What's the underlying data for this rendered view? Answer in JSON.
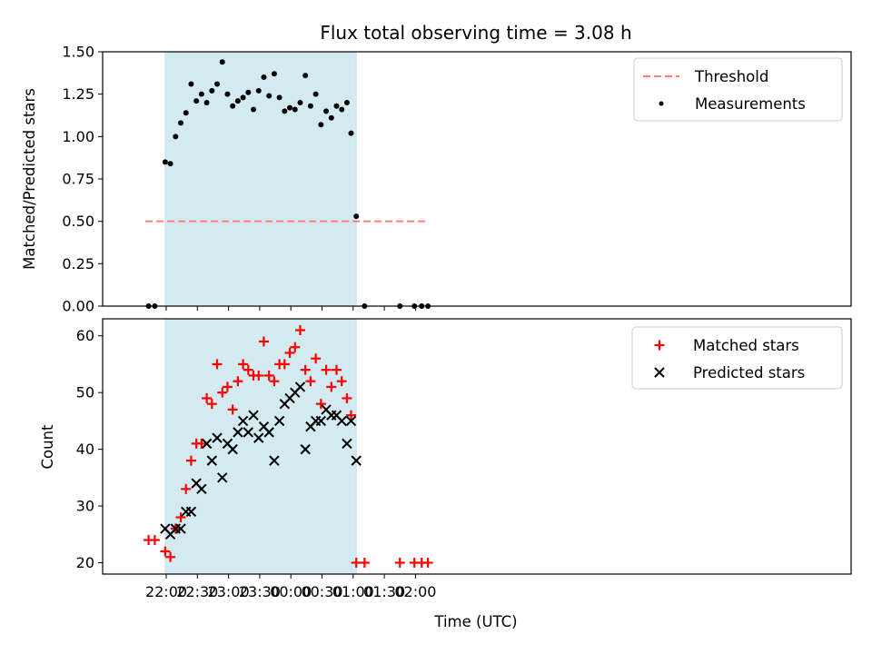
{
  "chart_data": [
    {
      "type": "scatter",
      "title": "Flux total observing time = 3.08 h",
      "xlabel": "",
      "ylabel": "Matched/Predicted stars",
      "ylim": [
        0,
        1.5
      ],
      "yticks": [
        "0.00",
        "0.25",
        "0.50",
        "0.75",
        "1.00",
        "1.25",
        "1.50"
      ],
      "shaded_interval": [
        "21:59",
        "01:03"
      ],
      "series": [
        {
          "name": "Threshold",
          "kind": "dashed-line",
          "color": "#ff7f7f",
          "x": [
            "21:40",
            "02:12"
          ],
          "values": [
            0.5,
            0.5
          ]
        },
        {
          "name": "Measurements",
          "kind": "dots",
          "color": "#000000",
          "x": [
            "21:43",
            "21:49",
            "21:59",
            "22:04",
            "22:09",
            "22:14",
            "22:19",
            "22:24",
            "22:29",
            "22:34",
            "22:39",
            "22:44",
            "22:49",
            "22:54",
            "22:59",
            "23:04",
            "23:09",
            "23:14",
            "23:19",
            "23:24",
            "23:29",
            "23:34",
            "23:39",
            "23:44",
            "23:49",
            "23:54",
            "23:59",
            "00:04",
            "00:09",
            "00:14",
            "00:19",
            "00:24",
            "00:29",
            "00:34",
            "00:39",
            "00:44",
            "00:49",
            "00:54",
            "00:58",
            "01:03",
            "01:11",
            "01:45",
            "01:59",
            "02:06",
            "02:12"
          ],
          "values": [
            0,
            0,
            0.85,
            0.84,
            1.0,
            1.08,
            1.14,
            1.31,
            1.21,
            1.25,
            1.2,
            1.27,
            1.31,
            1.44,
            1.25,
            1.18,
            1.21,
            1.23,
            1.26,
            1.16,
            1.27,
            1.35,
            1.24,
            1.37,
            1.23,
            1.15,
            1.17,
            1.16,
            1.2,
            1.36,
            1.18,
            1.25,
            1.07,
            1.15,
            1.11,
            1.18,
            1.16,
            1.2,
            1.02,
            0.53,
            0,
            0,
            0,
            0,
            0
          ]
        }
      ],
      "legend": "top-right"
    },
    {
      "type": "scatter",
      "title": "",
      "xlabel": "Time (UTC)",
      "ylabel": "Count",
      "ylim": [
        18,
        63
      ],
      "yticks": [
        "20",
        "30",
        "40",
        "50",
        "60"
      ],
      "xticks": [
        "22:00",
        "22:30",
        "23:00",
        "23:30",
        "00:00",
        "00:30",
        "01:00",
        "01:30",
        "02:00"
      ],
      "shaded_interval": [
        "21:59",
        "01:03"
      ],
      "series": [
        {
          "name": "Matched stars",
          "kind": "plus",
          "color": "#ff0000",
          "x": [
            "21:43",
            "21:49",
            "21:59",
            "22:04",
            "22:09",
            "22:14",
            "22:19",
            "22:24",
            "22:29",
            "22:34",
            "22:39",
            "22:44",
            "22:49",
            "22:54",
            "22:59",
            "23:04",
            "23:09",
            "23:14",
            "23:19",
            "23:24",
            "23:29",
            "23:34",
            "23:39",
            "23:44",
            "23:49",
            "23:54",
            "23:59",
            "00:04",
            "00:09",
            "00:14",
            "00:19",
            "00:24",
            "00:29",
            "00:34",
            "00:39",
            "00:44",
            "00:49",
            "00:54",
            "00:58",
            "01:03",
            "01:11",
            "01:45",
            "01:59",
            "02:06",
            "02:12"
          ],
          "values": [
            24,
            24,
            22,
            21,
            26,
            28,
            33,
            38,
            41,
            41,
            49,
            48,
            55,
            50,
            51,
            47,
            52,
            55,
            54,
            53,
            53,
            59,
            53,
            52,
            55,
            55,
            57,
            58,
            61,
            54,
            52,
            56,
            48,
            54,
            51,
            54,
            52,
            49,
            46,
            20,
            20,
            20,
            20,
            20,
            20
          ]
        },
        {
          "name": "Predicted stars",
          "kind": "x",
          "color": "#000000",
          "x": [
            "21:59",
            "22:04",
            "22:09",
            "22:14",
            "22:19",
            "22:24",
            "22:29",
            "22:34",
            "22:39",
            "22:44",
            "22:49",
            "22:54",
            "22:59",
            "23:04",
            "23:09",
            "23:14",
            "23:19",
            "23:24",
            "23:29",
            "23:34",
            "23:39",
            "23:44",
            "23:49",
            "23:54",
            "23:59",
            "00:04",
            "00:09",
            "00:14",
            "00:19",
            "00:24",
            "00:29",
            "00:34",
            "00:39",
            "00:44",
            "00:49",
            "00:54",
            "00:58",
            "01:03"
          ],
          "values": [
            26,
            25,
            26,
            26,
            29,
            29,
            34,
            33,
            41,
            38,
            42,
            35,
            41,
            40,
            43,
            45,
            43,
            46,
            42,
            44,
            43,
            38,
            45,
            48,
            49,
            50,
            51,
            40,
            44,
            45,
            45,
            47,
            46,
            46,
            45,
            41,
            45,
            38
          ]
        }
      ],
      "legend": "top-right"
    }
  ],
  "colors": {
    "shade": "#d3eaf0",
    "shade_edge": "#c5e2ea"
  }
}
